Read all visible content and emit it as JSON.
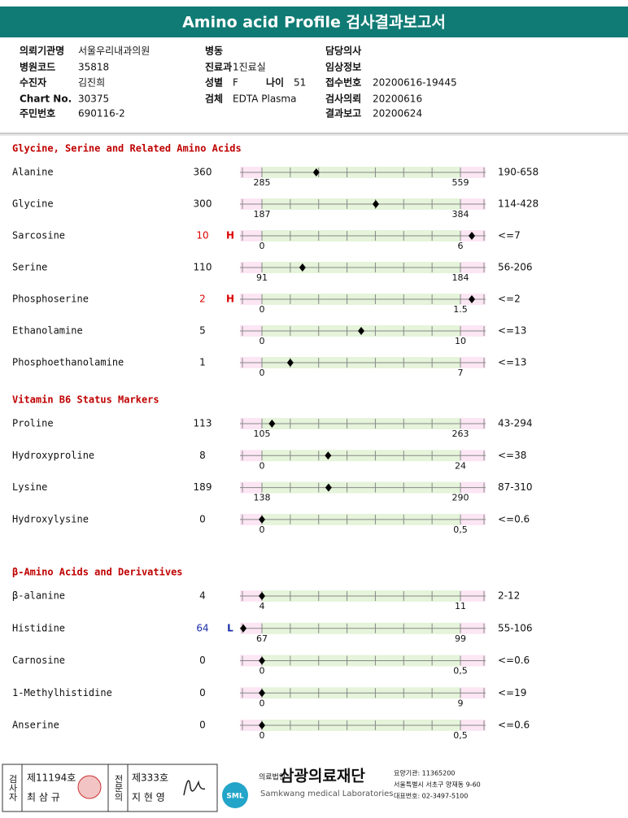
{
  "header": {
    "title": "Amino acid Profile 검사결과보고서"
  },
  "info": {
    "left": [
      {
        "label": "의뢰기관명",
        "value": "서울우리내과의원"
      },
      {
        "label": "병원코드",
        "value": "35818"
      },
      {
        "label": "수진자",
        "value": "김진희"
      },
      {
        "label": "Chart No.",
        "value": "30375"
      },
      {
        "label": "주민번호",
        "value": "690116-2"
      }
    ],
    "middle": [
      {
        "label": "병동"
      },
      {
        "label": "진료과",
        "value": "1진료실"
      },
      {
        "label": "성별",
        "value": "F"
      },
      {
        "label": "검체",
        "value": "EDTA Plasma"
      }
    ],
    "age": {
      "label": "나이",
      "value": "51"
    },
    "right": [
      {
        "label": "담당의사"
      },
      {
        "label": "임상정보"
      },
      {
        "label": "접수번호",
        "value": "20200616-19445"
      },
      {
        "label": "검사의뢰",
        "value": "20200616"
      },
      {
        "label": "결과보고",
        "value": "20200624"
      }
    ]
  },
  "sections": [
    {
      "title": "Glycine, Serine and Related Amino Acids",
      "rows": [
        {
          "name": "Alanine",
          "value": 360,
          "low": "285",
          "high": "559",
          "range": "190-658"
        },
        {
          "name": "Glycine",
          "value": 300,
          "low": "187",
          "high": "384",
          "range": "114-428"
        },
        {
          "name": "Sarcosine",
          "value": 10,
          "flag": "H",
          "low": "0",
          "high": "6",
          "range": "<=7"
        },
        {
          "name": "Serine",
          "value": 110,
          "low": "91",
          "high": "184",
          "range": "56-206"
        },
        {
          "name": "Phosphoserine",
          "value": 2,
          "flag": "H",
          "low": "0",
          "high": "1.5",
          "range": "<=2"
        },
        {
          "name": "Ethanolamine",
          "value": 5,
          "low": "0",
          "high": "10",
          "range": "<=13"
        },
        {
          "name": "Phosphoethanolamine",
          "value": 1,
          "low": "0",
          "high": "7",
          "range": "<=13"
        }
      ]
    },
    {
      "title": "Vitamin B6 Status Markers",
      "rows": [
        {
          "name": "Proline",
          "value": 113,
          "low": "105",
          "high": "263",
          "range": "43-294"
        },
        {
          "name": "Hydroxyproline",
          "value": 8,
          "low": "0",
          "high": "24",
          "range": "<=38"
        },
        {
          "name": "Lysine",
          "value": 189,
          "low": "138",
          "high": "290",
          "range": "87-310"
        },
        {
          "name": "Hydroxylysine",
          "value": 0,
          "low": "0",
          "high": "0,5",
          "range": "<=0.6"
        }
      ]
    },
    {
      "title": "β-Amino Acids and Derivatives",
      "rows": [
        {
          "name": "β-alanine",
          "value": 4,
          "low": "4",
          "high": "11",
          "range": "2-12"
        },
        {
          "name": "Histidine",
          "value": 64,
          "flag": "L",
          "low": "67",
          "high": "99",
          "range": "55-106"
        },
        {
          "name": "Carnosine",
          "value": 0,
          "low": "0",
          "high": "0,5",
          "range": "<=0.6"
        },
        {
          "name": "1-Methylhistidine",
          "value": 0,
          "low": "0",
          "high": "9",
          "range": "<=19"
        },
        {
          "name": "Anserine",
          "value": 0,
          "low": "0",
          "high": "0,5",
          "range": "<=0.6"
        }
      ]
    }
  ],
  "footer": {
    "examiner": {
      "label": "검사자",
      "number": "제11194호",
      "name": "최 삼 규"
    },
    "specialist": {
      "label": "전문의",
      "number": "제333호",
      "name": "지 현 영"
    },
    "logo": "SML",
    "org_type": "의료법인",
    "org": "삼광의료재단",
    "org_en": "Samkwang medical Laboratories",
    "code": "요양기관: 11365200",
    "address": "서울특별시 서초구 양재동 9-60",
    "phone": "대표번호: 02-3497-5100"
  }
}
